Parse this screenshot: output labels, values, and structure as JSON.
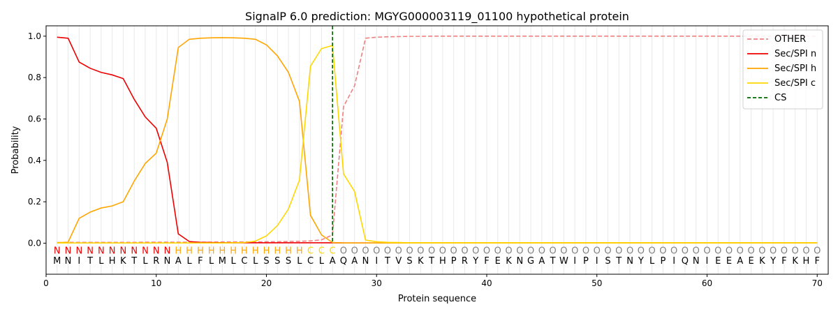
{
  "chart_data": {
    "type": "line",
    "title": "SignalP 6.0 prediction: MGYG000003119_01100 hypothetical protein",
    "xlabel": "Protein sequence",
    "ylabel": "Probability",
    "xlim": [
      0,
      71
    ],
    "ylim": [
      -0.15,
      1.05
    ],
    "xticks": [
      0,
      10,
      20,
      30,
      40,
      50,
      60,
      70
    ],
    "yticks": [
      0.0,
      0.2,
      0.4,
      0.6,
      0.8,
      1.0
    ],
    "legend_position": "top-right",
    "cleavage_site": 26,
    "sequence": [
      "M",
      "N",
      "I",
      "T",
      "L",
      "H",
      "K",
      "T",
      "L",
      "R",
      "N",
      "A",
      "L",
      "F",
      "L",
      "M",
      "L",
      "C",
      "L",
      "S",
      "S",
      "S",
      "L",
      "C",
      "L",
      "A",
      "Q",
      "A",
      "N",
      "I",
      "T",
      "V",
      "S",
      "K",
      "T",
      "H",
      "P",
      "R",
      "Y",
      "F",
      "E",
      "K",
      "N",
      "G",
      "A",
      "T",
      "W",
      "I",
      "P",
      "I",
      "S",
      "T",
      "N",
      "Y",
      "L",
      "P",
      "I",
      "Q",
      "N",
      "I",
      "E",
      "E",
      "A",
      "E",
      "K",
      "Y",
      "F",
      "K",
      "H",
      "F"
    ],
    "region_labels": [
      "N",
      "N",
      "N",
      "N",
      "N",
      "N",
      "N",
      "N",
      "N",
      "N",
      "N",
      "H",
      "H",
      "H",
      "H",
      "H",
      "H",
      "H",
      "H",
      "H",
      "H",
      "H",
      "H",
      "C",
      "C",
      "C",
      "O",
      "O",
      "O",
      "O",
      "O",
      "O",
      "O",
      "O",
      "O",
      "O",
      "O",
      "O",
      "O",
      "O",
      "O",
      "O",
      "O",
      "O",
      "O",
      "O",
      "O",
      "O",
      "O",
      "O",
      "O",
      "O",
      "O",
      "O",
      "O",
      "O",
      "O",
      "O",
      "O",
      "O",
      "O",
      "O",
      "O",
      "O",
      "O",
      "O",
      "O",
      "O",
      "O",
      "O"
    ],
    "region_colors": {
      "N": "#ee0000",
      "H": "#ffa500",
      "C": "#ffd700",
      "O": "#808080"
    },
    "series": [
      {
        "name": "OTHER",
        "color": "#f08080",
        "dash": true,
        "values": [
          0.003,
          0.004,
          0.004,
          0.004,
          0.004,
          0.004,
          0.004,
          0.004,
          0.005,
          0.005,
          0.005,
          0.005,
          0.005,
          0.005,
          0.005,
          0.006,
          0.006,
          0.006,
          0.006,
          0.007,
          0.007,
          0.008,
          0.009,
          0.011,
          0.016,
          0.04,
          0.66,
          0.76,
          0.99,
          0.995,
          0.997,
          0.998,
          0.999,
          0.999,
          1,
          1,
          1,
          1,
          1,
          1,
          1,
          1,
          1,
          1,
          1,
          1,
          1,
          1,
          1,
          1,
          1,
          1,
          1,
          1,
          1,
          1,
          1,
          1,
          1,
          1,
          1,
          1,
          1,
          1,
          1,
          1,
          1,
          1,
          1,
          1
        ]
      },
      {
        "name": "Sec/SPI n",
        "color": "#ee0000",
        "dash": false,
        "values": [
          0.995,
          0.99,
          0.875,
          0.845,
          0.825,
          0.813,
          0.795,
          0.695,
          0.61,
          0.555,
          0.39,
          0.045,
          0.008,
          0.004,
          0.003,
          0.002,
          0.002,
          0.002,
          0.002,
          0.002,
          0.002,
          0.002,
          0.002,
          0.002,
          0.002,
          0.002,
          0.001,
          0.001,
          0.001,
          0.001,
          0.001,
          0.001,
          0.001,
          0.001,
          0.001,
          0.001,
          0.001,
          0.001,
          0.001,
          0.001,
          0.001,
          0.001,
          0.001,
          0.001,
          0.001,
          0.001,
          0.001,
          0.001,
          0.001,
          0.001,
          0.001,
          0.001,
          0.001,
          0.001,
          0.001,
          0.001,
          0.001,
          0.001,
          0.001,
          0.001,
          0.001,
          0.001,
          0.001,
          0.001,
          0.001,
          0.001,
          0.001,
          0.001,
          0.001,
          0.001
        ]
      },
      {
        "name": "Sec/SPI h",
        "color": "#ffa500",
        "dash": false,
        "values": [
          0.002,
          0.005,
          0.12,
          0.15,
          0.17,
          0.18,
          0.2,
          0.3,
          0.385,
          0.435,
          0.6,
          0.945,
          0.985,
          0.99,
          0.992,
          0.993,
          0.992,
          0.99,
          0.985,
          0.958,
          0.905,
          0.825,
          0.685,
          0.135,
          0.04,
          0.003,
          0.001,
          0.001,
          0.001,
          0.001,
          0.001,
          0.001,
          0.001,
          0.001,
          0.001,
          0.001,
          0.001,
          0.001,
          0.001,
          0.001,
          0.001,
          0.001,
          0.001,
          0.001,
          0.001,
          0.001,
          0.001,
          0.001,
          0.001,
          0.001,
          0.001,
          0.001,
          0.001,
          0.001,
          0.001,
          0.001,
          0.001,
          0.001,
          0.001,
          0.001,
          0.001,
          0.001,
          0.001,
          0.001,
          0.001,
          0.001,
          0.001,
          0.001,
          0.001,
          0.001
        ]
      },
      {
        "name": "Sec/SPI c",
        "color": "#ffd700",
        "dash": false,
        "values": [
          0.001,
          0.001,
          0.001,
          0.001,
          0.001,
          0.001,
          0.001,
          0.001,
          0.001,
          0.001,
          0.001,
          0.001,
          0.001,
          0.001,
          0.001,
          0.001,
          0.002,
          0.003,
          0.01,
          0.035,
          0.085,
          0.165,
          0.305,
          0.855,
          0.94,
          0.955,
          0.335,
          0.25,
          0.015,
          0.007,
          0.004,
          0.003,
          0.002,
          0.002,
          0.002,
          0.002,
          0.002,
          0.002,
          0.002,
          0.002,
          0.002,
          0.002,
          0.002,
          0.002,
          0.002,
          0.002,
          0.002,
          0.002,
          0.002,
          0.002,
          0.002,
          0.002,
          0.002,
          0.002,
          0.002,
          0.002,
          0.002,
          0.002,
          0.002,
          0.002,
          0.002,
          0.002,
          0.002,
          0.002,
          0.002,
          0.002,
          0.002,
          0.002,
          0.002,
          0.002
        ]
      }
    ],
    "cs_legend": {
      "name": "CS",
      "color": "#006400"
    }
  }
}
